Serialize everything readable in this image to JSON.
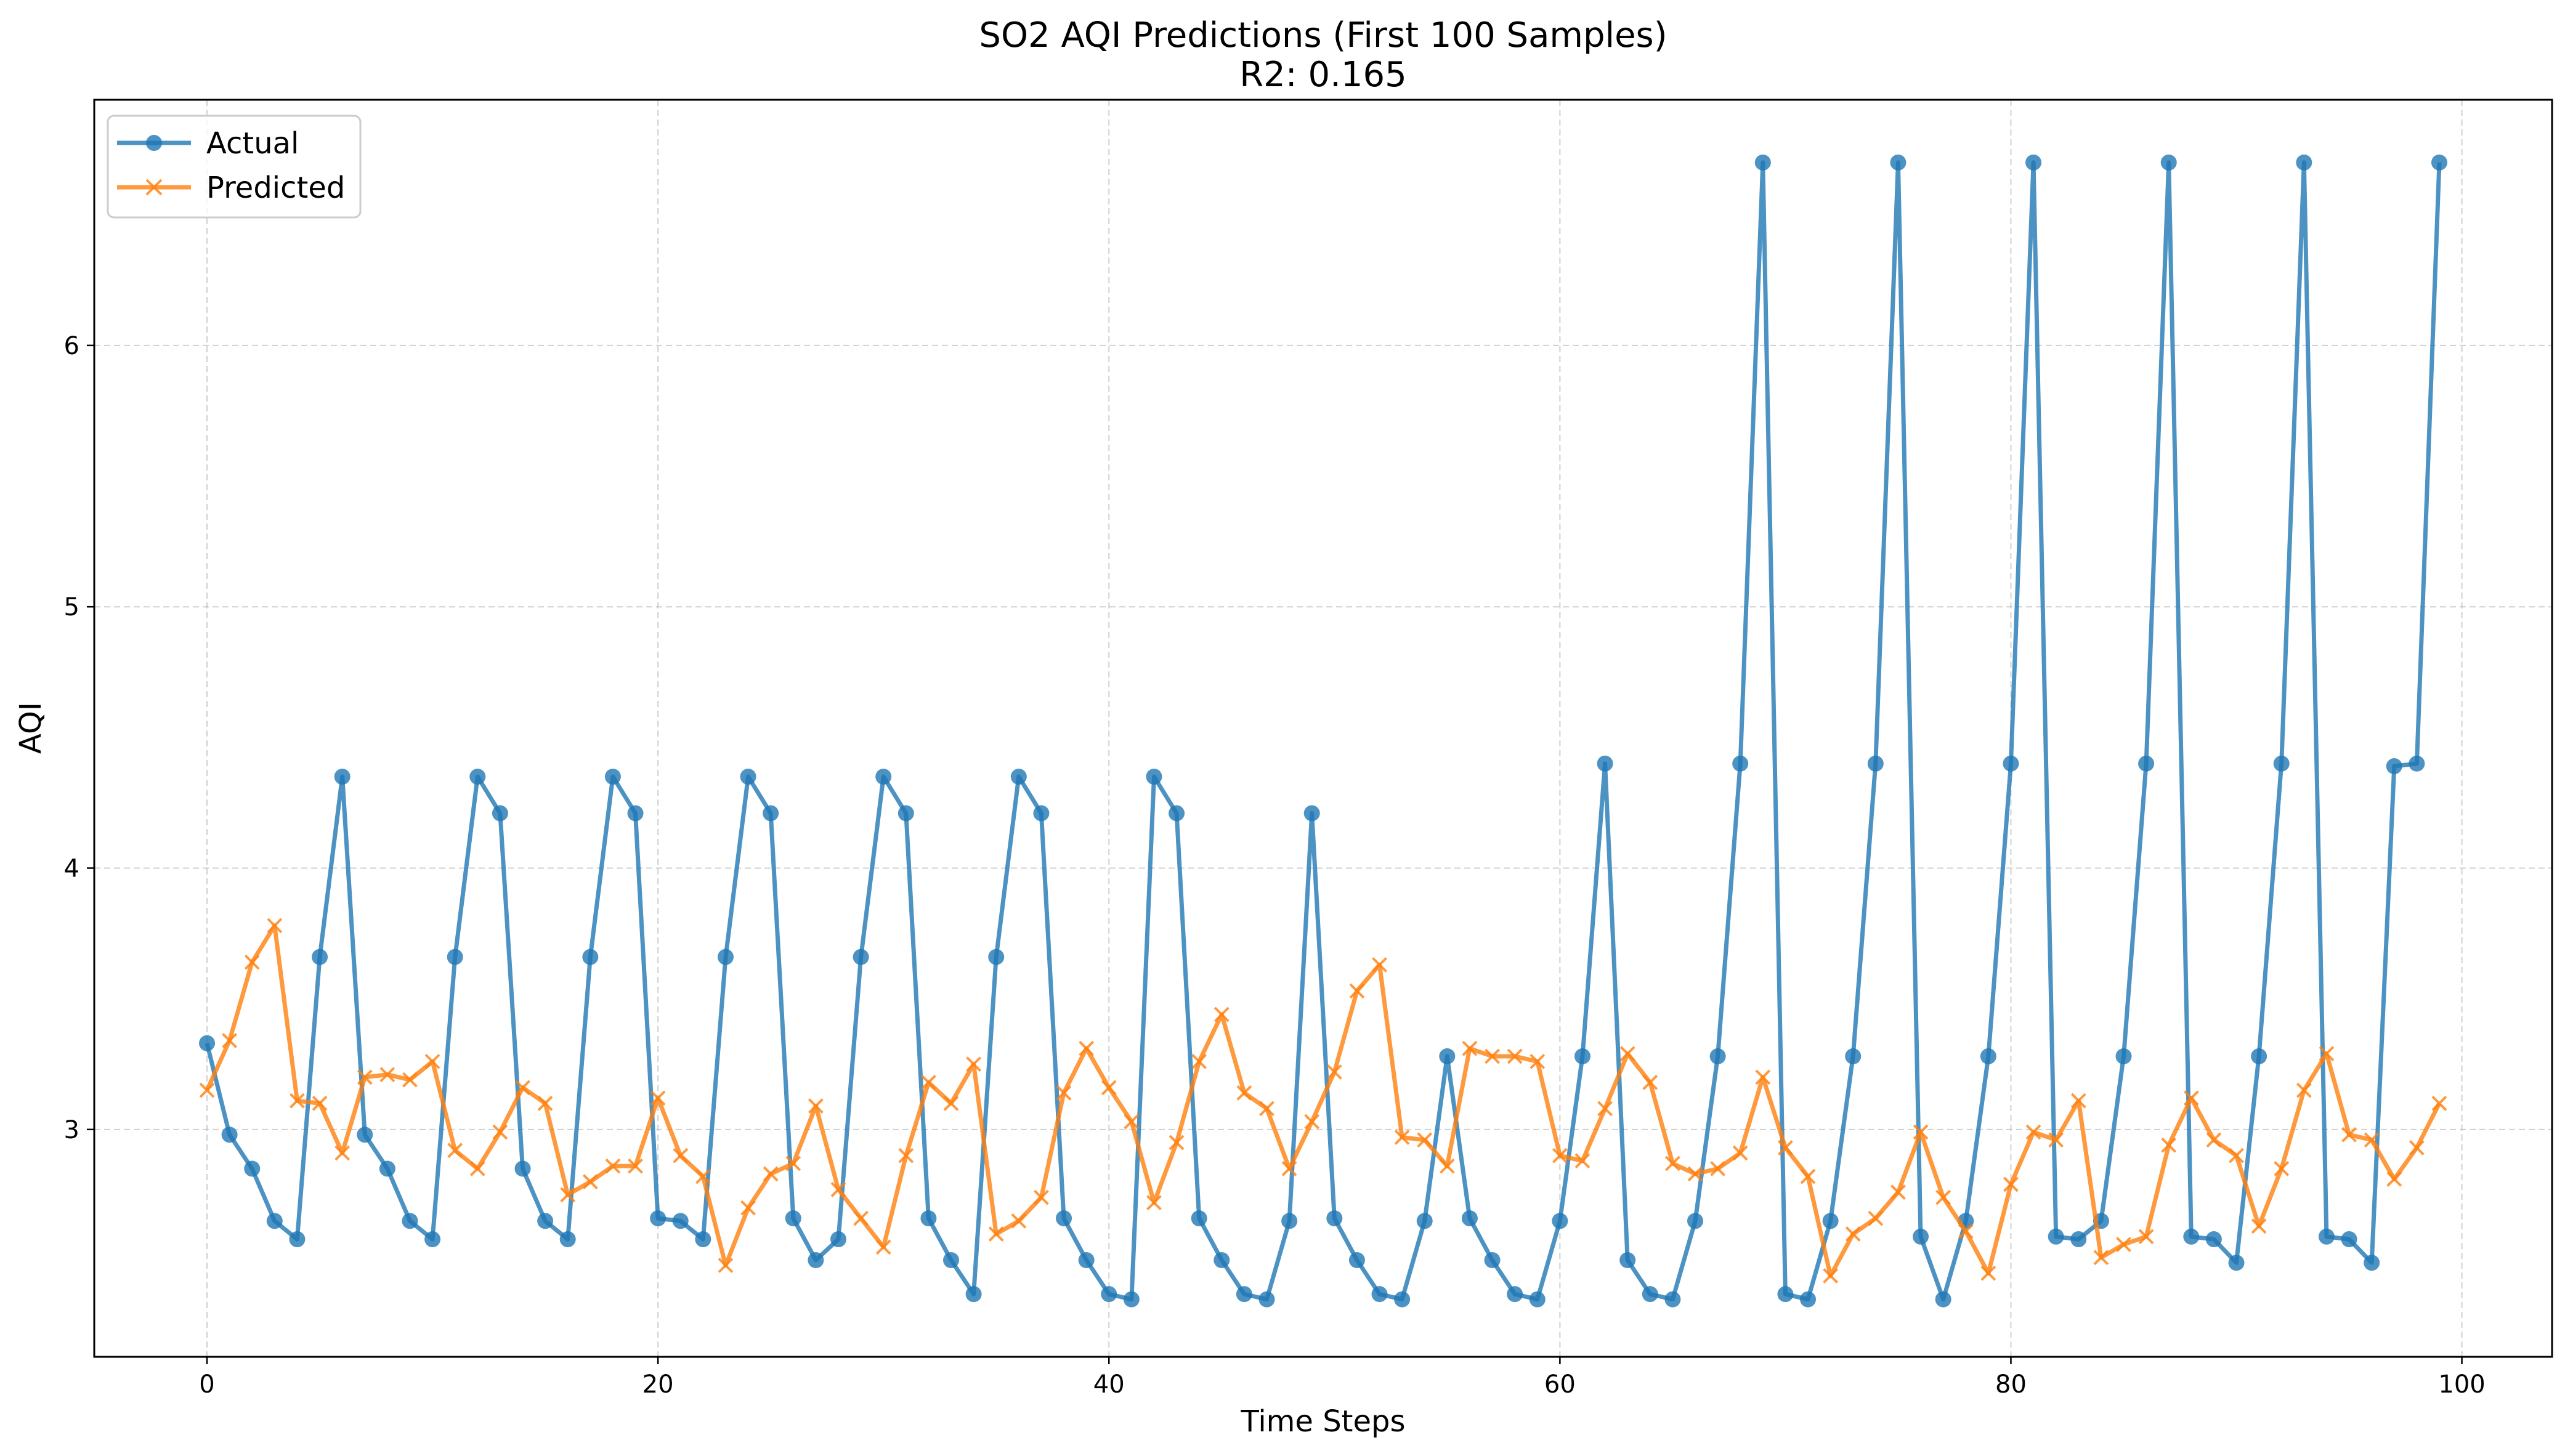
{
  "chart_data": {
    "type": "line",
    "title": "SO2 AQI Predictions (First 100 Samples)",
    "subtitle": "R2: 0.165",
    "xlabel": "Time Steps",
    "ylabel": "AQI",
    "xlim": [
      -5,
      104
    ],
    "ylim": [
      2.13,
      6.94
    ],
    "xticks": [
      0,
      20,
      40,
      60,
      80,
      100
    ],
    "yticks": [
      3,
      4,
      5,
      6
    ],
    "grid": true,
    "legend_position": "top-left",
    "x": [
      0,
      1,
      2,
      3,
      4,
      5,
      6,
      7,
      8,
      9,
      10,
      11,
      12,
      13,
      14,
      15,
      16,
      17,
      18,
      19,
      20,
      21,
      22,
      23,
      24,
      25,
      26,
      27,
      28,
      29,
      30,
      31,
      32,
      33,
      34,
      35,
      36,
      37,
      38,
      39,
      40,
      41,
      42,
      43,
      44,
      45,
      46,
      47,
      48,
      49,
      50,
      51,
      52,
      53,
      54,
      55,
      56,
      57,
      58,
      59,
      60,
      61,
      62,
      63,
      64,
      65,
      66,
      67,
      68,
      69,
      70,
      71,
      72,
      73,
      74,
      75,
      76,
      77,
      78,
      79,
      80,
      81,
      82,
      83,
      84,
      85,
      86,
      87,
      88,
      89,
      90,
      91,
      92,
      93,
      94,
      95,
      96,
      97,
      98,
      99
    ],
    "series": [
      {
        "name": "Actual",
        "color": "#1f77b4",
        "marker": "circle",
        "values": [
          3.33,
          2.98,
          2.85,
          2.65,
          2.58,
          3.66,
          4.35,
          2.98,
          2.85,
          2.65,
          2.58,
          3.66,
          4.35,
          4.21,
          2.85,
          2.65,
          2.58,
          3.66,
          4.35,
          4.21,
          2.66,
          2.65,
          2.58,
          3.66,
          4.35,
          4.21,
          2.66,
          2.5,
          2.58,
          3.66,
          4.35,
          4.21,
          2.66,
          2.5,
          2.37,
          3.66,
          4.35,
          4.21,
          2.66,
          2.5,
          2.37,
          2.35,
          4.35,
          4.21,
          2.66,
          2.5,
          2.37,
          2.35,
          2.65,
          4.21,
          2.66,
          2.5,
          2.37,
          2.35,
          2.65,
          3.28,
          2.66,
          2.5,
          2.37,
          2.35,
          2.65,
          3.28,
          4.4,
          2.5,
          2.37,
          2.35,
          2.65,
          3.28,
          4.4,
          6.7,
          2.37,
          2.35,
          2.65,
          3.28,
          4.4,
          6.7,
          2.59,
          2.35,
          2.65,
          3.28,
          4.4,
          6.7,
          2.59,
          2.58,
          2.65,
          3.28,
          4.4,
          6.7,
          2.59,
          2.58,
          2.49,
          3.28,
          4.4,
          6.7,
          2.59,
          2.58,
          2.49,
          4.39,
          4.4,
          6.7
        ]
      },
      {
        "name": "Predicted",
        "color": "#ff7f0e",
        "marker": "x",
        "values": [
          3.15,
          3.34,
          3.64,
          3.78,
          3.11,
          3.1,
          2.91,
          3.2,
          3.21,
          3.19,
          3.26,
          2.92,
          2.85,
          2.99,
          3.16,
          3.1,
          2.75,
          2.8,
          2.86,
          2.86,
          3.12,
          2.9,
          2.82,
          2.48,
          2.7,
          2.83,
          2.87,
          3.09,
          2.77,
          2.66,
          2.55,
          2.9,
          3.18,
          3.1,
          3.25,
          2.6,
          2.65,
          2.74,
          3.14,
          3.31,
          3.16,
          3.03,
          2.72,
          2.95,
          3.26,
          3.44,
          3.14,
          3.08,
          2.85,
          3.03,
          3.22,
          3.53,
          3.63,
          2.97,
          2.96,
          2.86,
          3.31,
          3.28,
          3.28,
          3.26,
          2.9,
          2.88,
          3.08,
          3.29,
          3.18,
          2.87,
          2.83,
          2.85,
          2.91,
          3.2,
          2.93,
          2.82,
          2.44,
          2.6,
          2.66,
          2.76,
          2.99,
          2.74,
          2.61,
          2.45,
          2.79,
          2.99,
          2.96,
          3.11,
          2.51,
          2.56,
          2.59,
          2.94,
          3.12,
          2.96,
          2.9,
          2.63,
          2.85,
          3.15,
          3.29,
          2.98,
          2.96,
          2.81,
          2.93,
          3.1
        ]
      }
    ]
  }
}
